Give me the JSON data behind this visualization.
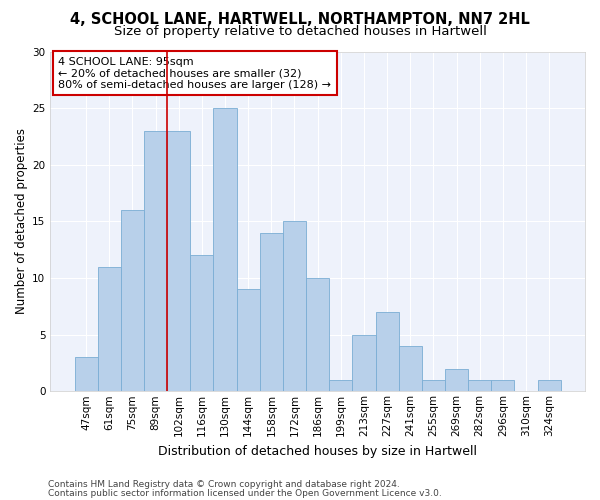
{
  "title1": "4, SCHOOL LANE, HARTWELL, NORTHAMPTON, NN7 2HL",
  "title2": "Size of property relative to detached houses in Hartwell",
  "xlabel": "Distribution of detached houses by size in Hartwell",
  "ylabel": "Number of detached properties",
  "categories": [
    "47sqm",
    "61sqm",
    "75sqm",
    "89sqm",
    "102sqm",
    "116sqm",
    "130sqm",
    "144sqm",
    "158sqm",
    "172sqm",
    "186sqm",
    "199sqm",
    "213sqm",
    "227sqm",
    "241sqm",
    "255sqm",
    "269sqm",
    "282sqm",
    "296sqm",
    "310sqm",
    "324sqm"
  ],
  "values": [
    3,
    11,
    16,
    23,
    23,
    12,
    25,
    9,
    14,
    15,
    10,
    1,
    5,
    7,
    4,
    1,
    2,
    1,
    1,
    0,
    1
  ],
  "bar_color": "#b8d0ea",
  "bar_edge_color": "#7aadd4",
  "vline_x": 3.5,
  "vline_color": "#cc0000",
  "annotation_line1": "4 SCHOOL LANE: 95sqm",
  "annotation_line2": "← 20% of detached houses are smaller (32)",
  "annotation_line3": "80% of semi-detached houses are larger (128) →",
  "ylim": [
    0,
    30
  ],
  "yticks": [
    0,
    5,
    10,
    15,
    20,
    25,
    30
  ],
  "bg_color": "#eef2fb",
  "footer1": "Contains HM Land Registry data © Crown copyright and database right 2024.",
  "footer2": "Contains public sector information licensed under the Open Government Licence v3.0.",
  "title1_fontsize": 10.5,
  "title2_fontsize": 9.5,
  "xlabel_fontsize": 9,
  "ylabel_fontsize": 8.5,
  "annot_fontsize": 8,
  "tick_fontsize": 7.5,
  "footer_fontsize": 6.5
}
